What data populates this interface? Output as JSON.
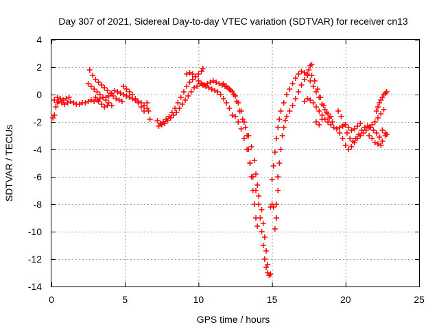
{
  "chart_data": {
    "type": "scatter",
    "title": "Day 307 of 2021, Sidereal Day-to-day VTEC variation (SDTVAR) for receiver cn13",
    "xlabel": "GPS time / hours",
    "ylabel": "SDTVAR / TECUs",
    "xlim": [
      0,
      25
    ],
    "ylim": [
      -14,
      4
    ],
    "xticks": [
      0,
      5,
      10,
      15,
      20,
      25
    ],
    "yticks": [
      -14,
      -12,
      -10,
      -8,
      -6,
      -4,
      -2,
      0,
      2,
      4
    ],
    "grid": true,
    "marker": "+",
    "color": "#ff0000",
    "series": [
      {
        "name": "SDTVAR",
        "points": [
          [
            0.1,
            -1.7
          ],
          [
            0.2,
            -1.5
          ],
          [
            0.3,
            -0.9
          ],
          [
            0.4,
            -0.6
          ],
          [
            0.5,
            -0.5
          ],
          [
            0.7,
            -0.6
          ],
          [
            0.9,
            -0.7
          ],
          [
            1.1,
            -0.6
          ],
          [
            1.3,
            -0.5
          ],
          [
            1.5,
            -0.6
          ],
          [
            1.7,
            -0.7
          ],
          [
            1.9,
            -0.7
          ],
          [
            2.1,
            -0.6
          ],
          [
            2.3,
            -0.6
          ],
          [
            2.5,
            -0.5
          ],
          [
            2.7,
            -0.4
          ],
          [
            2.9,
            -0.5
          ],
          [
            3.1,
            -0.4
          ],
          [
            3.3,
            -0.3
          ],
          [
            3.5,
            -0.2
          ],
          [
            3.7,
            -0.2
          ],
          [
            3.9,
            -0.1
          ],
          [
            4.1,
            0.1
          ],
          [
            4.3,
            0.3
          ],
          [
            4.5,
            0.2
          ],
          [
            4.7,
            0.1
          ],
          [
            4.9,
            0.0
          ],
          [
            5.1,
            -0.1
          ],
          [
            5.3,
            -0.2
          ],
          [
            5.5,
            -0.3
          ],
          [
            5.7,
            -0.4
          ],
          [
            5.9,
            -0.5
          ],
          [
            6.1,
            -0.6
          ],
          [
            6.3,
            -0.8
          ],
          [
            6.5,
            -1.0
          ],
          [
            0.2,
            -0.4
          ],
          [
            0.4,
            -0.2
          ],
          [
            0.6,
            -0.3
          ],
          [
            0.8,
            -0.4
          ],
          [
            1.0,
            -0.3
          ],
          [
            1.2,
            -0.2
          ],
          [
            2.6,
            1.8
          ],
          [
            2.8,
            1.4
          ],
          [
            3.0,
            1.1
          ],
          [
            3.2,
            0.9
          ],
          [
            3.4,
            0.7
          ],
          [
            3.6,
            0.5
          ],
          [
            3.8,
            0.3
          ],
          [
            4.0,
            0.1
          ],
          [
            4.2,
            -0.1
          ],
          [
            4.4,
            -0.3
          ],
          [
            4.6,
            -0.4
          ],
          [
            4.8,
            -0.5
          ],
          [
            2.5,
            0.8
          ],
          [
            2.7,
            0.6
          ],
          [
            2.9,
            0.4
          ],
          [
            3.1,
            0.2
          ],
          [
            3.3,
            0.0
          ],
          [
            3.5,
            -0.2
          ],
          [
            3.7,
            -0.4
          ],
          [
            3.9,
            -0.6
          ],
          [
            4.1,
            -0.8
          ],
          [
            3.0,
            -0.2
          ],
          [
            3.2,
            -0.5
          ],
          [
            3.4,
            -0.7
          ],
          [
            3.6,
            -0.9
          ],
          [
            3.8,
            -0.8
          ],
          [
            4.9,
            0.6
          ],
          [
            5.1,
            0.4
          ],
          [
            5.3,
            0.2
          ],
          [
            5.5,
            0.0
          ],
          [
            5.7,
            -0.3
          ],
          [
            5.9,
            -0.6
          ],
          [
            6.1,
            -0.9
          ],
          [
            6.3,
            -1.2
          ],
          [
            6.5,
            -0.6
          ],
          [
            6.6,
            -1.2
          ],
          [
            6.7,
            -1.8
          ],
          [
            7.2,
            -1.9
          ],
          [
            7.4,
            -2.1
          ],
          [
            7.6,
            -2.0
          ],
          [
            7.8,
            -1.8
          ],
          [
            8.0,
            -1.6
          ],
          [
            8.2,
            -1.3
          ],
          [
            8.4,
            -1.0
          ],
          [
            8.6,
            -0.6
          ],
          [
            8.8,
            -0.2
          ],
          [
            9.0,
            0.2
          ],
          [
            9.2,
            0.6
          ],
          [
            9.4,
            0.9
          ],
          [
            9.6,
            1.1
          ],
          [
            9.8,
            1.3
          ],
          [
            10.0,
            1.5
          ],
          [
            10.2,
            1.7
          ],
          [
            10.3,
            1.9
          ],
          [
            7.3,
            -2.3
          ],
          [
            7.5,
            -2.2
          ],
          [
            7.7,
            -2.1
          ],
          [
            7.9,
            -1.9
          ],
          [
            8.1,
            -1.7
          ],
          [
            8.3,
            -1.5
          ],
          [
            8.5,
            -1.3
          ],
          [
            8.7,
            -1.0
          ],
          [
            8.9,
            -0.7
          ],
          [
            9.1,
            -0.4
          ],
          [
            9.3,
            -0.1
          ],
          [
            9.5,
            0.2
          ],
          [
            9.7,
            0.5
          ],
          [
            9.9,
            0.6
          ],
          [
            10.1,
            0.8
          ],
          [
            10.3,
            0.7
          ],
          [
            10.5,
            0.6
          ],
          [
            10.7,
            0.5
          ],
          [
            10.9,
            0.4
          ],
          [
            11.1,
            0.3
          ],
          [
            11.3,
            0.2
          ],
          [
            11.5,
            0.0
          ],
          [
            11.7,
            -0.3
          ],
          [
            11.9,
            -0.6
          ],
          [
            12.1,
            -1.0
          ],
          [
            12.3,
            -1.5
          ],
          [
            9.2,
            1.5
          ],
          [
            9.4,
            1.6
          ],
          [
            9.6,
            1.5
          ],
          [
            9.8,
            1.3
          ],
          [
            10.0,
            1.0
          ],
          [
            10.2,
            0.8
          ],
          [
            10.4,
            0.7
          ],
          [
            10.6,
            0.8
          ],
          [
            10.8,
            0.9
          ],
          [
            11.0,
            1.0
          ],
          [
            11.2,
            0.9
          ],
          [
            11.4,
            0.8
          ],
          [
            11.6,
            0.7
          ],
          [
            11.8,
            0.6
          ],
          [
            12.0,
            0.5
          ],
          [
            12.2,
            0.3
          ],
          [
            12.4,
            0.0
          ],
          [
            12.6,
            -0.5
          ],
          [
            12.8,
            -1.2
          ],
          [
            11.7,
            0.8
          ],
          [
            11.9,
            0.6
          ],
          [
            12.1,
            0.4
          ],
          [
            12.3,
            0.2
          ],
          [
            12.5,
            -0.1
          ],
          [
            12.7,
            -0.6
          ],
          [
            12.9,
            -1.2
          ],
          [
            13.1,
            -2.0
          ],
          [
            13.3,
            -3.0
          ],
          [
            13.4,
            -4.0
          ],
          [
            13.5,
            -5.0
          ],
          [
            13.6,
            -6.0
          ],
          [
            13.7,
            -7.0
          ],
          [
            13.8,
            -8.0
          ],
          [
            13.9,
            -9.0
          ],
          [
            14.0,
            -9.6
          ],
          [
            12.5,
            -1.6
          ],
          [
            12.7,
            -2.0
          ],
          [
            12.9,
            -2.5
          ],
          [
            13.1,
            -3.2
          ],
          [
            13.3,
            -4.0
          ],
          [
            13.5,
            -5.0
          ],
          [
            13.7,
            -6.0
          ],
          [
            13.9,
            -7.0
          ],
          [
            14.1,
            -8.0
          ],
          [
            14.2,
            -9.0
          ],
          [
            14.3,
            -10.0
          ],
          [
            14.4,
            -11.0
          ],
          [
            14.5,
            -12.0
          ],
          [
            14.6,
            -12.6
          ],
          [
            14.7,
            -13.0
          ],
          [
            14.8,
            -13.2
          ],
          [
            14.9,
            -13.1
          ],
          [
            13.0,
            -1.8
          ],
          [
            13.2,
            -2.4
          ],
          [
            13.4,
            -3.0
          ],
          [
            13.6,
            -3.8
          ],
          [
            13.8,
            -4.8
          ],
          [
            13.9,
            -5.8
          ],
          [
            14.0,
            -6.6
          ],
          [
            14.1,
            -7.4
          ],
          [
            14.3,
            -8.4
          ],
          [
            14.4,
            -9.4
          ],
          [
            14.5,
            -10.4
          ],
          [
            14.6,
            -11.4
          ],
          [
            14.7,
            -12.4
          ],
          [
            14.9,
            -8.2
          ],
          [
            15.0,
            -8.0
          ],
          [
            15.1,
            -8.2
          ],
          [
            15.2,
            -9.8
          ],
          [
            15.3,
            -9.0
          ],
          [
            15.3,
            -8.0
          ],
          [
            15.4,
            -7.0
          ],
          [
            15.4,
            -6.0
          ],
          [
            15.5,
            -5.0
          ],
          [
            15.6,
            -4.0
          ],
          [
            15.7,
            -3.0
          ],
          [
            15.8,
            -2.4
          ],
          [
            15.9,
            -1.9
          ],
          [
            16.0,
            -1.6
          ],
          [
            16.2,
            -1.2
          ],
          [
            16.4,
            -0.8
          ],
          [
            16.6,
            -0.3
          ],
          [
            16.8,
            0.2
          ],
          [
            17.0,
            0.7
          ],
          [
            17.2,
            1.1
          ],
          [
            17.4,
            1.5
          ],
          [
            17.5,
            1.8
          ],
          [
            17.6,
            2.1
          ],
          [
            17.7,
            2.2
          ],
          [
            15.0,
            -6.2
          ],
          [
            15.1,
            -5.2
          ],
          [
            15.2,
            -4.2
          ],
          [
            15.3,
            -3.2
          ],
          [
            15.4,
            -2.4
          ],
          [
            15.5,
            -1.8
          ],
          [
            15.6,
            -1.2
          ],
          [
            15.8,
            -0.6
          ],
          [
            16.0,
            0.0
          ],
          [
            16.2,
            0.4
          ],
          [
            16.4,
            0.8
          ],
          [
            16.6,
            1.2
          ],
          [
            16.8,
            1.5
          ],
          [
            17.0,
            1.7
          ],
          [
            17.2,
            1.6
          ],
          [
            17.4,
            1.4
          ],
          [
            17.6,
            1.0
          ],
          [
            17.8,
            0.6
          ],
          [
            18.0,
            0.2
          ],
          [
            18.2,
            -0.2
          ],
          [
            18.4,
            -0.7
          ],
          [
            18.6,
            -1.1
          ],
          [
            18.8,
            -1.4
          ],
          [
            19.0,
            -1.6
          ],
          [
            17.2,
            -0.5
          ],
          [
            17.4,
            -0.3
          ],
          [
            17.6,
            -0.4
          ],
          [
            17.8,
            -0.6
          ],
          [
            18.0,
            -0.9
          ],
          [
            18.2,
            -1.2
          ],
          [
            18.4,
            -1.5
          ],
          [
            18.6,
            -1.8
          ],
          [
            18.8,
            -2.0
          ],
          [
            19.0,
            -2.2
          ],
          [
            19.2,
            -2.4
          ],
          [
            19.4,
            -2.5
          ],
          [
            19.6,
            -2.4
          ],
          [
            19.8,
            -2.3
          ],
          [
            17.7,
            1.4
          ],
          [
            17.9,
            1.0
          ],
          [
            18.1,
            0.4
          ],
          [
            18.3,
            -0.2
          ],
          [
            18.5,
            -0.8
          ],
          [
            18.7,
            -1.3
          ],
          [
            18.9,
            -1.7
          ],
          [
            19.1,
            -2.0
          ],
          [
            18.0,
            -2.0
          ],
          [
            18.2,
            -2.2
          ],
          [
            18.4,
            -1.8
          ],
          [
            19.5,
            -1.2
          ],
          [
            19.7,
            -1.6
          ],
          [
            19.9,
            -2.2
          ],
          [
            20.1,
            -2.8
          ],
          [
            20.3,
            -3.2
          ],
          [
            20.5,
            -3.4
          ],
          [
            20.7,
            -3.2
          ],
          [
            20.9,
            -2.9
          ],
          [
            21.1,
            -2.6
          ],
          [
            21.3,
            -2.4
          ],
          [
            21.5,
            -2.3
          ],
          [
            21.7,
            -2.4
          ],
          [
            21.9,
            -2.6
          ],
          [
            22.1,
            -2.8
          ],
          [
            22.3,
            -3.1
          ],
          [
            22.5,
            -3.4
          ],
          [
            22.7,
            -3.0
          ],
          [
            19.6,
            -2.8
          ],
          [
            19.8,
            -3.2
          ],
          [
            20.0,
            -3.7
          ],
          [
            20.2,
            -4.0
          ],
          [
            20.4,
            -3.8
          ],
          [
            20.6,
            -3.5
          ],
          [
            20.8,
            -3.2
          ],
          [
            21.0,
            -3.0
          ],
          [
            21.2,
            -2.8
          ],
          [
            21.4,
            -2.6
          ],
          [
            21.6,
            -2.4
          ],
          [
            21.8,
            -2.2
          ],
          [
            22.0,
            -2.0
          ],
          [
            22.2,
            -1.7
          ],
          [
            22.4,
            -1.4
          ],
          [
            22.6,
            -1.1
          ],
          [
            20.0,
            -2.2
          ],
          [
            20.2,
            -2.4
          ],
          [
            20.4,
            -2.6
          ],
          [
            20.6,
            -2.5
          ],
          [
            20.8,
            -2.3
          ],
          [
            21.0,
            -2.1
          ],
          [
            21.6,
            -3.0
          ],
          [
            21.8,
            -3.2
          ],
          [
            22.0,
            -3.5
          ],
          [
            22.2,
            -3.6
          ],
          [
            22.4,
            -3.7
          ],
          [
            22.1,
            -1.2
          ],
          [
            22.2,
            -0.9
          ],
          [
            22.3,
            -0.6
          ],
          [
            22.4,
            -0.4
          ],
          [
            22.5,
            -0.2
          ],
          [
            22.6,
            0.0
          ],
          [
            22.7,
            0.1
          ],
          [
            22.8,
            0.2
          ],
          [
            22.5,
            -2.6
          ],
          [
            22.7,
            -2.8
          ],
          [
            22.8,
            -2.9
          ]
        ]
      }
    ]
  }
}
